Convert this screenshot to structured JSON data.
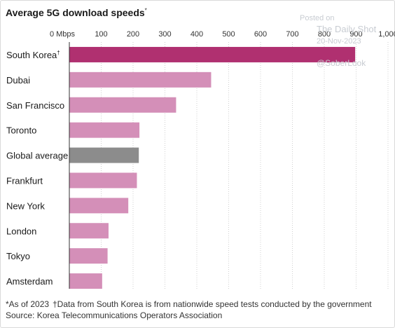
{
  "chart_data": {
    "type": "bar",
    "orientation": "horizontal",
    "title": "Average 5G download speeds",
    "title_marker": "*",
    "xlim": [
      0,
      1000
    ],
    "x_ticks": [
      "0 Mbps",
      "100",
      "200",
      "300",
      "400",
      "500",
      "600",
      "700",
      "800",
      "900",
      "1,000"
    ],
    "tick_values": [
      0,
      100,
      200,
      300,
      400,
      500,
      600,
      700,
      800,
      900,
      1000
    ],
    "grid": true,
    "categories": [
      "South Korea",
      "Dubai",
      "San Francisco",
      "Toronto",
      "Global average",
      "Frankfurt",
      "New York",
      "London",
      "Tokyo",
      "Amsterdam"
    ],
    "category_markers": [
      "†",
      "",
      "",
      "",
      "",
      "",
      "",
      "",
      "",
      ""
    ],
    "values": [
      897,
      445,
      335,
      220,
      218,
      212,
      185,
      123,
      120,
      103
    ],
    "highlight_color": "#b03070",
    "base_color": "#d48fb8",
    "average_color": "#8c8c8c"
  },
  "footnotes": {
    "note1": "*As of 2023",
    "note2": "†Data from South Korea is from nationwide speed tests conducted by the government",
    "source": "Source: Korea Telecommunications Operators Association"
  },
  "watermark": {
    "line1": "Posted on",
    "line2": "The Daily Shot",
    "line3": "20-Nov-2023",
    "line4": "@SoberLook"
  }
}
